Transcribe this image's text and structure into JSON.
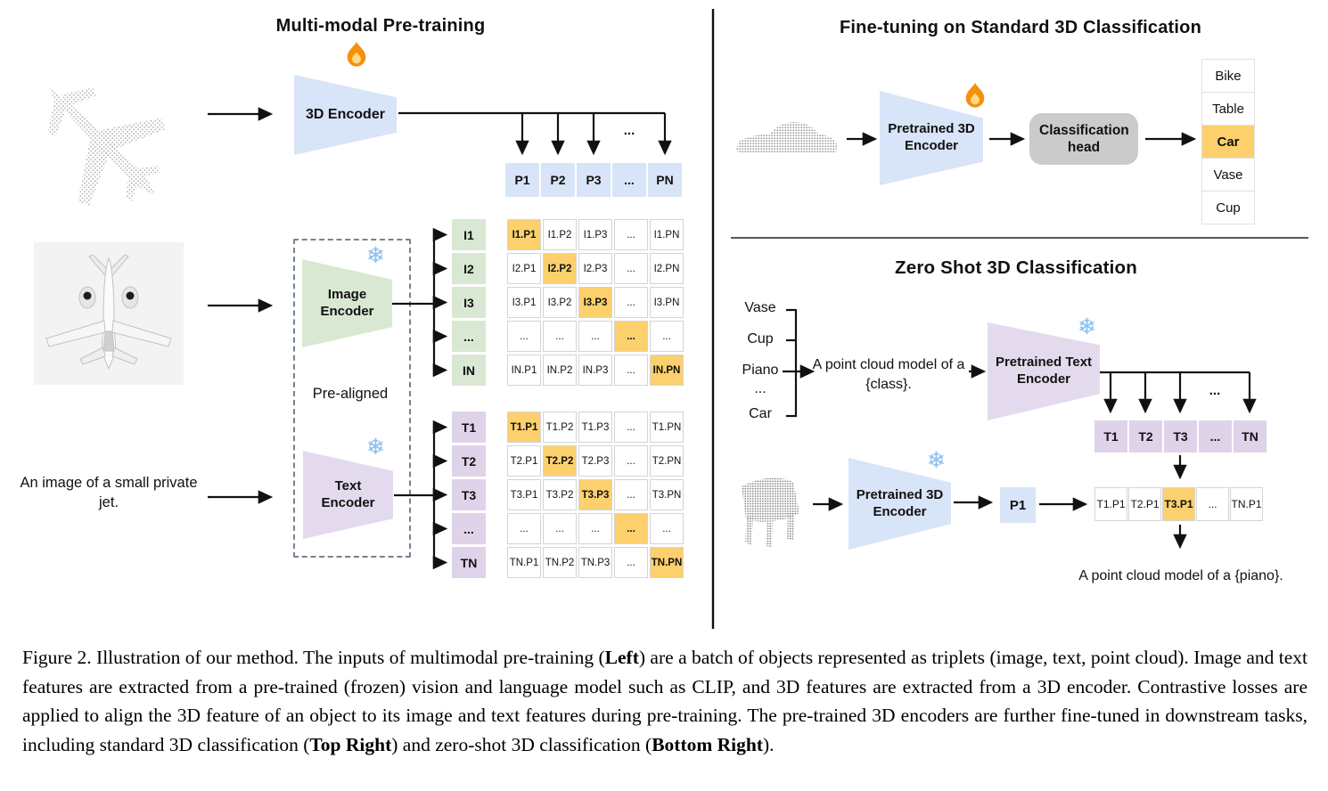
{
  "left": {
    "title": "Multi-modal Pre-training",
    "encoder_3d_label": "3D Encoder",
    "image_encoder_label": "Image Encoder",
    "text_encoder_label": "Text Encoder",
    "prealigned_label": "Pre-aligned",
    "image_caption": "An image of a small private jet.",
    "p_row": [
      "P1",
      "P2",
      "P3",
      "...",
      "PN"
    ],
    "i_headers": [
      "I1",
      "I2",
      "I3",
      "...",
      "IN"
    ],
    "i_matrix": [
      [
        "I1.P1",
        "I1.P2",
        "I1.P3",
        "...",
        "I1.PN"
      ],
      [
        "I2.P1",
        "I2.P2",
        "I2.P3",
        "...",
        "I2.PN"
      ],
      [
        "I3.P1",
        "I3.P2",
        "I3.P3",
        "...",
        "I3.PN"
      ],
      [
        "...",
        "...",
        "...",
        "...",
        "..."
      ],
      [
        "IN.P1",
        "IN.P2",
        "IN.P3",
        "...",
        "IN.PN"
      ]
    ],
    "t_headers": [
      "T1",
      "T2",
      "T3",
      "...",
      "TN"
    ],
    "t_matrix": [
      [
        "T1.P1",
        "T1.P2",
        "T1.P3",
        "...",
        "T1.PN"
      ],
      [
        "T2.P1",
        "T2.P2",
        "T2.P3",
        "...",
        "T2.PN"
      ],
      [
        "T3.P1",
        "T3.P2",
        "T3.P3",
        "...",
        "T3.PN"
      ],
      [
        "...",
        "...",
        "...",
        "...",
        "..."
      ],
      [
        "TN.P1",
        "TN.P2",
        "TN.P3",
        "...",
        "TN.PN"
      ]
    ],
    "ellipsis": "..."
  },
  "top_right": {
    "title": "Fine-tuning on Standard 3D Classification",
    "encoder_label": "Pretrained 3D Encoder",
    "head_label": "Classification head",
    "classes": [
      "Bike",
      "Table",
      "Car",
      "Vase",
      "Cup"
    ],
    "highlighted_class": "Car"
  },
  "bottom_right": {
    "title": "Zero Shot 3D Classification",
    "class_labels": [
      "Vase",
      "Cup",
      "Piano",
      "...",
      "Car"
    ],
    "prompt": "A point cloud model of a {class}.",
    "text_encoder_label": "Pretrained Text Encoder",
    "t_row": [
      "T1",
      "T2",
      "T3",
      "...",
      "TN"
    ],
    "encoder_3d_label": "Pretrained 3D Encoder",
    "p_cell": "P1",
    "tp_row": [
      "T1.P1",
      "T2.P1",
      "T3.P1",
      "...",
      "TN.P1"
    ],
    "tp_highlight_index": 2,
    "result_prompt": "A point cloud model of a {piano}.",
    "ellipsis": "..."
  },
  "caption": {
    "segments": [
      {
        "text": "Figure 2. Illustration of our method. The inputs of multimodal pre-training (",
        "bold": false
      },
      {
        "text": "Left",
        "bold": true
      },
      {
        "text": ") are a batch of objects represented as triplets (image, text, point cloud).  Image and text features are extracted from a pre-trained (frozen) vision and language model such as CLIP, and 3D features are extracted from a 3D encoder.  Contrastive losses are applied to align the 3D feature of an object to its image and text features during pre-training.  The pre-trained 3D encoders are further fine-tuned in downstream tasks, including standard 3D classification (",
        "bold": false
      },
      {
        "text": "Top Right",
        "bold": true
      },
      {
        "text": ") and zero-shot 3D classification (",
        "bold": false
      },
      {
        "text": "Bottom Right",
        "bold": true
      },
      {
        "text": ").",
        "bold": false
      }
    ]
  },
  "icons": {
    "flame_icon": "flame",
    "snowflake_char": "❄"
  },
  "colors": {
    "blue": "#d8e4f7",
    "green": "#d9e8d3",
    "purple": "#e4daee",
    "purpleCell": "#ded3e9",
    "orange": "#fbd06d",
    "gray": "#cbcbcb"
  }
}
